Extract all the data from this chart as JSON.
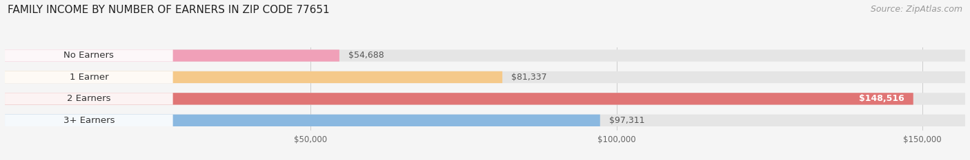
{
  "title": "FAMILY INCOME BY NUMBER OF EARNERS IN ZIP CODE 77651",
  "source": "Source: ZipAtlas.com",
  "categories": [
    "No Earners",
    "1 Earner",
    "2 Earners",
    "3+ Earners"
  ],
  "values": [
    54688,
    81337,
    148516,
    97311
  ],
  "labels": [
    "$54,688",
    "$81,337",
    "$148,516",
    "$97,311"
  ],
  "bar_colors": [
    "#f0a0b8",
    "#f5c98a",
    "#e07575",
    "#8ab8e0"
  ],
  "label_inside": [
    false,
    false,
    true,
    false
  ],
  "background_color": "#f5f5f5",
  "bar_bg_color": "#e5e5e5",
  "xlim_data": [
    0,
    157000
  ],
  "xticks": [
    50000,
    100000,
    150000
  ],
  "xticklabels": [
    "$50,000",
    "$100,000",
    "$150,000"
  ],
  "title_fontsize": 11,
  "source_fontsize": 9,
  "label_fontsize": 9,
  "category_fontsize": 9.5
}
